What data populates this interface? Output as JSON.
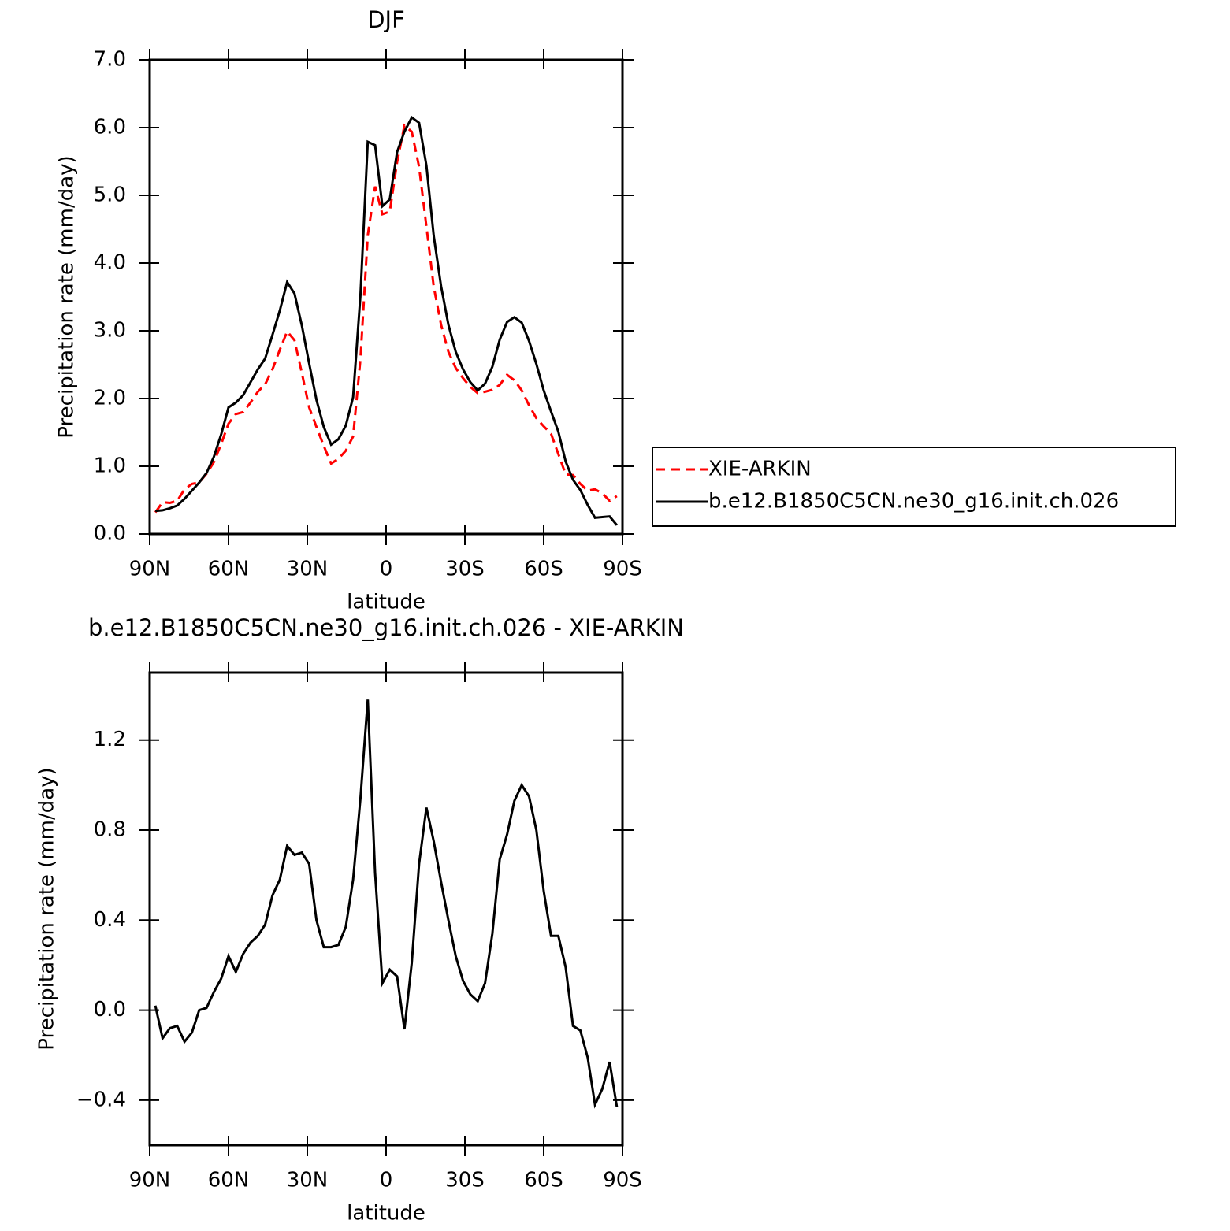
{
  "chart_data": [
    {
      "type": "line",
      "title": "DJF",
      "xlabel": "latitude",
      "ylabel": "Precipitation rate (mm/day)",
      "x": [
        87.86,
        85.1,
        82.31,
        79.53,
        76.74,
        73.95,
        71.16,
        68.37,
        65.58,
        62.79,
        60.0,
        57.21,
        54.42,
        51.63,
        48.84,
        46.05,
        43.26,
        40.46,
        37.67,
        34.88,
        32.09,
        29.3,
        26.51,
        23.72,
        20.93,
        18.14,
        15.35,
        12.56,
        9.77,
        6.98,
        4.19,
        1.4,
        -1.4,
        -4.19,
        -6.98,
        -9.77,
        -12.56,
        -15.35,
        -18.14,
        -20.93,
        -23.72,
        -26.51,
        -29.3,
        -32.09,
        -34.88,
        -37.67,
        -40.46,
        -43.26,
        -46.05,
        -48.84,
        -51.63,
        -54.42,
        -57.21,
        -60.0,
        -62.79,
        -65.58,
        -68.37,
        -71.16,
        -73.95,
        -76.74,
        -79.53,
        -82.31,
        -85.1,
        -87.86
      ],
      "xlim": [
        90,
        -90
      ],
      "xticks": [
        {
          "value": 90,
          "label": "90N"
        },
        {
          "value": 60,
          "label": "60N"
        },
        {
          "value": 30,
          "label": "30N"
        },
        0,
        {
          "value": -30,
          "label": "30S"
        },
        {
          "value": -60,
          "label": "60S"
        },
        {
          "value": -90,
          "label": "90S"
        }
      ],
      "ylim": [
        0,
        7
      ],
      "yticks": [
        {
          "value": 0,
          "label": "0.0"
        },
        {
          "value": 1,
          "label": "1.0"
        },
        {
          "value": 2,
          "label": "2.0"
        },
        {
          "value": 3,
          "label": "3.0"
        },
        {
          "value": 4,
          "label": "4.0"
        },
        {
          "value": 5,
          "label": "5.0"
        },
        {
          "value": 6,
          "label": "6.0"
        },
        {
          "value": 7,
          "label": "7.0"
        }
      ],
      "legend": "outside-right",
      "series": [
        {
          "name": "XIE-ARKIN",
          "color": "#ff0000",
          "dash": "dashed",
          "values": [
            0.32,
            0.47,
            0.46,
            0.49,
            0.66,
            0.74,
            0.76,
            0.89,
            1.06,
            1.33,
            1.63,
            1.77,
            1.8,
            1.94,
            2.1,
            2.21,
            2.43,
            2.72,
            2.99,
            2.86,
            2.38,
            1.87,
            1.58,
            1.3,
            1.04,
            1.11,
            1.23,
            1.44,
            2.58,
            4.41,
            5.13,
            4.72,
            4.76,
            5.49,
            6.03,
            5.94,
            5.42,
            4.54,
            3.65,
            3.09,
            2.69,
            2.45,
            2.3,
            2.17,
            2.08,
            2.1,
            2.13,
            2.2,
            2.35,
            2.27,
            2.12,
            1.9,
            1.71,
            1.59,
            1.48,
            1.18,
            0.88,
            0.87,
            0.74,
            0.64,
            0.66,
            0.6,
            0.49,
            0.56
          ]
        },
        {
          "name": "b.e12.B1850C5CN.ne30_g16.init.ch.026",
          "color": "#000000",
          "dash": "solid",
          "values": [
            0.34,
            0.35,
            0.38,
            0.42,
            0.52,
            0.64,
            0.76,
            0.9,
            1.14,
            1.47,
            1.87,
            1.94,
            2.05,
            2.24,
            2.43,
            2.59,
            2.94,
            3.3,
            3.72,
            3.55,
            3.08,
            2.52,
            1.98,
            1.58,
            1.32,
            1.4,
            1.6,
            2.02,
            3.52,
            5.79,
            5.74,
            4.84,
            4.94,
            5.64,
            5.94,
            6.15,
            6.07,
            5.44,
            4.4,
            3.66,
            3.09,
            2.69,
            2.43,
            2.24,
            2.12,
            2.22,
            2.47,
            2.87,
            3.13,
            3.2,
            3.12,
            2.85,
            2.51,
            2.12,
            1.81,
            1.51,
            1.07,
            0.8,
            0.65,
            0.43,
            0.24,
            0.25,
            0.26,
            0.13
          ]
        }
      ]
    },
    {
      "type": "line",
      "title": "b.e12.B1850C5CN.ne30_g16.init.ch.026 - XIE-ARKIN",
      "xlabel": "latitude",
      "ylabel": "Precipitation rate (mm/day)",
      "x": [
        87.86,
        85.1,
        82.31,
        79.53,
        76.74,
        73.95,
        71.16,
        68.37,
        65.58,
        62.79,
        60.0,
        57.21,
        54.42,
        51.63,
        48.84,
        46.05,
        43.26,
        40.46,
        37.67,
        34.88,
        32.09,
        29.3,
        26.51,
        23.72,
        20.93,
        18.14,
        15.35,
        12.56,
        9.77,
        6.98,
        4.19,
        1.4,
        -1.4,
        -4.19,
        -6.98,
        -9.77,
        -12.56,
        -15.35,
        -18.14,
        -20.93,
        -23.72,
        -26.51,
        -29.3,
        -32.09,
        -34.88,
        -37.67,
        -40.46,
        -43.26,
        -46.05,
        -48.84,
        -51.63,
        -54.42,
        -57.21,
        -60.0,
        -62.79,
        -65.58,
        -68.37,
        -71.16,
        -73.95,
        -76.74,
        -79.53,
        -82.31,
        -85.1,
        -87.86
      ],
      "xlim": [
        90,
        -90
      ],
      "xticks": [
        {
          "value": 90,
          "label": "90N"
        },
        {
          "value": 60,
          "label": "60N"
        },
        {
          "value": 30,
          "label": "30N"
        },
        0,
        {
          "value": -30,
          "label": "30S"
        },
        {
          "value": -60,
          "label": "60S"
        },
        {
          "value": -90,
          "label": "90S"
        }
      ],
      "ylim": [
        -0.6,
        1.5
      ],
      "yticks": [
        {
          "value": -0.4,
          "label": "−0.4"
        },
        {
          "value": 0,
          "label": "0.0"
        },
        0.4,
        0.8,
        1.2
      ],
      "color": "#000000",
      "values": [
        0.02,
        -0.125,
        -0.08,
        -0.07,
        -0.14,
        -0.1,
        0.0,
        0.01,
        0.08,
        0.14,
        0.24,
        0.17,
        0.25,
        0.3,
        0.33,
        0.38,
        0.51,
        0.58,
        0.73,
        0.69,
        0.7,
        0.65,
        0.4,
        0.28,
        0.28,
        0.29,
        0.37,
        0.58,
        0.94,
        1.38,
        0.61,
        0.12,
        0.18,
        0.15,
        -0.085,
        0.21,
        0.65,
        0.9,
        0.75,
        0.57,
        0.4,
        0.24,
        0.13,
        0.07,
        0.04,
        0.12,
        0.34,
        0.67,
        0.78,
        0.93,
        1.0,
        0.95,
        0.8,
        0.53,
        0.33,
        0.33,
        0.19,
        -0.07,
        -0.09,
        -0.21,
        -0.42,
        -0.35,
        -0.23,
        -0.43
      ]
    }
  ]
}
